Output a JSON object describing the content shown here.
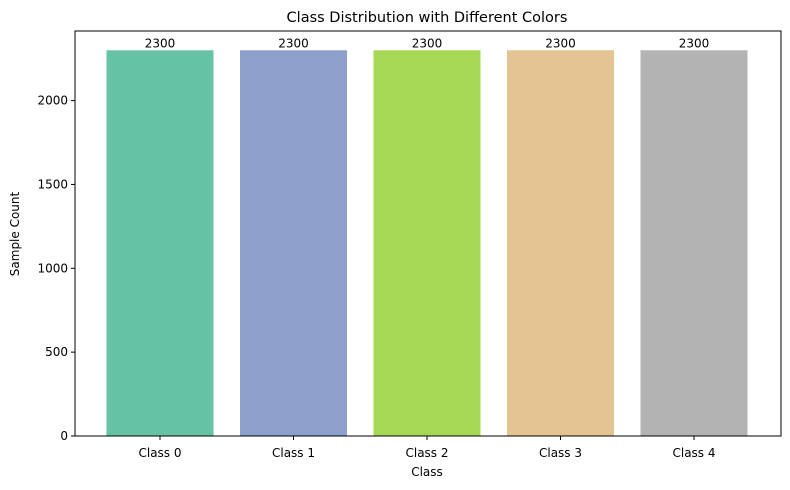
{
  "chart_data": {
    "type": "bar",
    "title": "Class Distribution with Different Colors",
    "xlabel": "Class",
    "ylabel": "Sample Count",
    "categories": [
      "Class 0",
      "Class 1",
      "Class 2",
      "Class 3",
      "Class 4"
    ],
    "values": [
      2300,
      2300,
      2300,
      2300,
      2300
    ],
    "data_labels": [
      "2300",
      "2300",
      "2300",
      "2300",
      "2300"
    ],
    "colors": [
      "#66c2a5",
      "#8da0cb",
      "#a6d854",
      "#e5c494",
      "#b3b3b3"
    ],
    "ylim": [
      0,
      2300
    ],
    "yticks": [
      0,
      500,
      1000,
      1500,
      2000
    ],
    "ytick_labels": [
      "0",
      "500",
      "1000",
      "1500",
      "2000"
    ],
    "grid": false,
    "legend": "none"
  }
}
